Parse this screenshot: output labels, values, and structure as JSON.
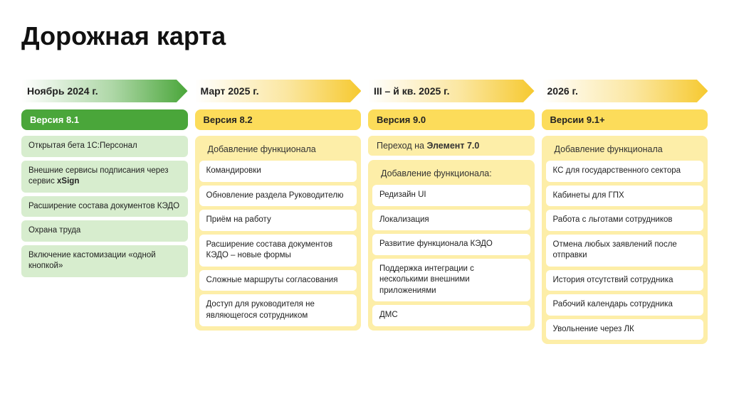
{
  "title": "Дорожная карта",
  "colors": {
    "green_strong": "#4aa63a",
    "green_light": "#d7edce",
    "yellow_strong": "#f6c92f",
    "yellow_mid": "#fbd94f",
    "yellow_mid2": "#fcdc5a",
    "yellow_light": "#fdeea8",
    "white": "#ffffff",
    "text": "#222222"
  },
  "arrow_gradient_stops": {
    "start_opacity": 0.0,
    "mid_opacity": 0.45,
    "end_opacity": 1.0
  },
  "columns": [
    {
      "theme": "green",
      "period": "Ноябрь 2024 г.",
      "version": "Версия 8.1",
      "top_items": [
        "Открытая бета 1С:Персонал",
        "Внешние сервисы подписания через сервис xSign",
        "Расширение состава документов КЭДО",
        "Охрана труда",
        "Включение кастомизации «одной кнопкой»"
      ],
      "top_items_bold_tokens": {
        "1": "xSign"
      },
      "sections": []
    },
    {
      "theme": "yellow",
      "period": "Март 2025 г.",
      "version": "Версия 8.2",
      "sections": [
        {
          "label": "Добавление функционала",
          "highlight": false,
          "items": [
            "Командировки",
            "Обновление раздела Руководителю",
            "Приём на работу",
            "Расширение состава документов КЭДО – новые формы",
            "Сложные маршруты согласования",
            "Доступ для руководителя не являющегося сотрудником"
          ]
        }
      ]
    },
    {
      "theme": "yellow",
      "period": "III – й кв.  2025 г.",
      "version": "Версия 9.0",
      "sections": [
        {
          "label": "Переход на Элемент 7.0",
          "label_bold_token": "Элемент 7.0",
          "highlight": true,
          "items": []
        },
        {
          "label": "Добавление функционала:",
          "highlight": false,
          "items": [
            "Редизайн UI",
            "Локализация",
            "Развитие функционала КЭДО",
            "Поддержка интеграции с несколькими внешними приложениями",
            "ДМС"
          ]
        }
      ]
    },
    {
      "theme": "yellow",
      "period": "2026 г.",
      "version": "Версии 9.1+",
      "sections": [
        {
          "label": "Добавление функционала",
          "highlight": false,
          "items": [
            "КС для государственного сектора",
            "Кабинеты для ГПХ",
            "Работа с льготами сотрудников",
            "Отмена любых заявлений после отправки",
            "История отсутствий сотрудника",
            "Рабочий календарь сотрудника",
            "Увольнение через ЛК"
          ]
        }
      ]
    }
  ]
}
